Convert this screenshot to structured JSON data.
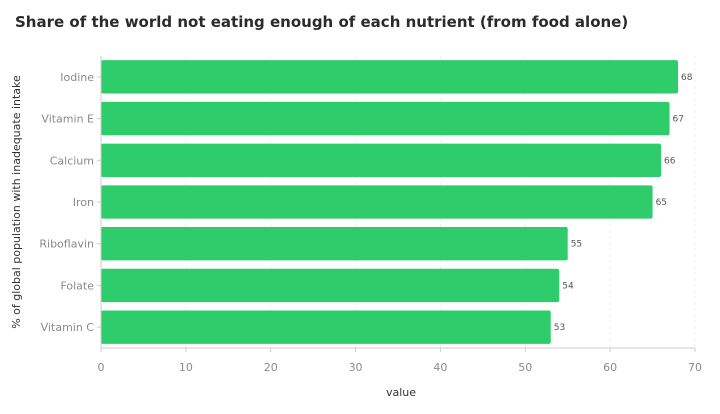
{
  "chart_data": {
    "type": "bar",
    "orientation": "horizontal",
    "title": "Share of the world not eating enough of each nutrient (from food alone)",
    "categories": [
      "Iodine",
      "Vitamin E",
      "Calcium",
      "Iron",
      "Riboflavin",
      "Folate",
      "Vitamin C"
    ],
    "values": [
      68,
      67,
      66,
      65,
      55,
      54,
      53
    ],
    "data_labels": [
      "68",
      "67",
      "66",
      "65",
      "55",
      "54",
      "53"
    ],
    "xlabel": "value",
    "ylabel": "% of global population with inadequate intake",
    "xlim": [
      0,
      70
    ],
    "x_ticks": [
      "0",
      "10",
      "20",
      "30",
      "40",
      "50",
      "60",
      "70"
    ],
    "grid": "vertical-dashed",
    "legend": "none",
    "bar_color": "#2ecc6a"
  }
}
